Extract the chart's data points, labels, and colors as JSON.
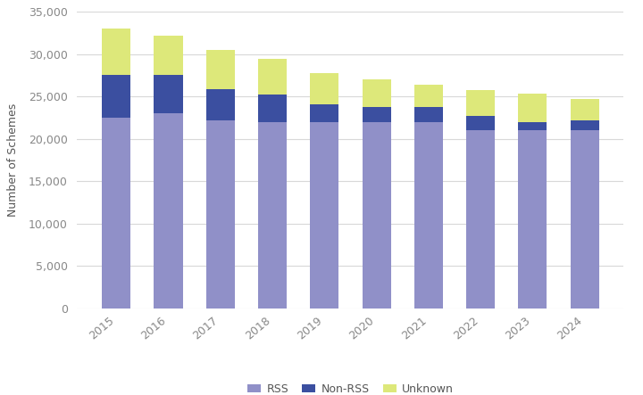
{
  "years": [
    2015,
    2016,
    2017,
    2018,
    2019,
    2020,
    2021,
    2022,
    2023,
    2024
  ],
  "rss": [
    22500,
    23000,
    22200,
    22000,
    22000,
    22000,
    22000,
    21000,
    21000,
    21000
  ],
  "non_rss": [
    5000,
    4500,
    3700,
    3200,
    2100,
    1800,
    1800,
    1700,
    1000,
    1200
  ],
  "unknown": [
    5500,
    4700,
    4600,
    4300,
    3700,
    3200,
    2600,
    3100,
    3300,
    2500
  ],
  "rss_color": "#9090c8",
  "non_rss_color": "#3b4fa0",
  "unknown_color": "#dde87a",
  "ylabel": "Number of Schemes",
  "ylim": [
    0,
    35000
  ],
  "yticks": [
    0,
    5000,
    10000,
    15000,
    20000,
    25000,
    30000,
    35000
  ],
  "legend_labels": [
    "RSS",
    "Non-RSS",
    "Unknown"
  ],
  "bar_width": 0.55,
  "bg_color": "#ffffff",
  "grid_color": "#d8d8d8",
  "tick_color": "#888888",
  "label_color": "#555555"
}
